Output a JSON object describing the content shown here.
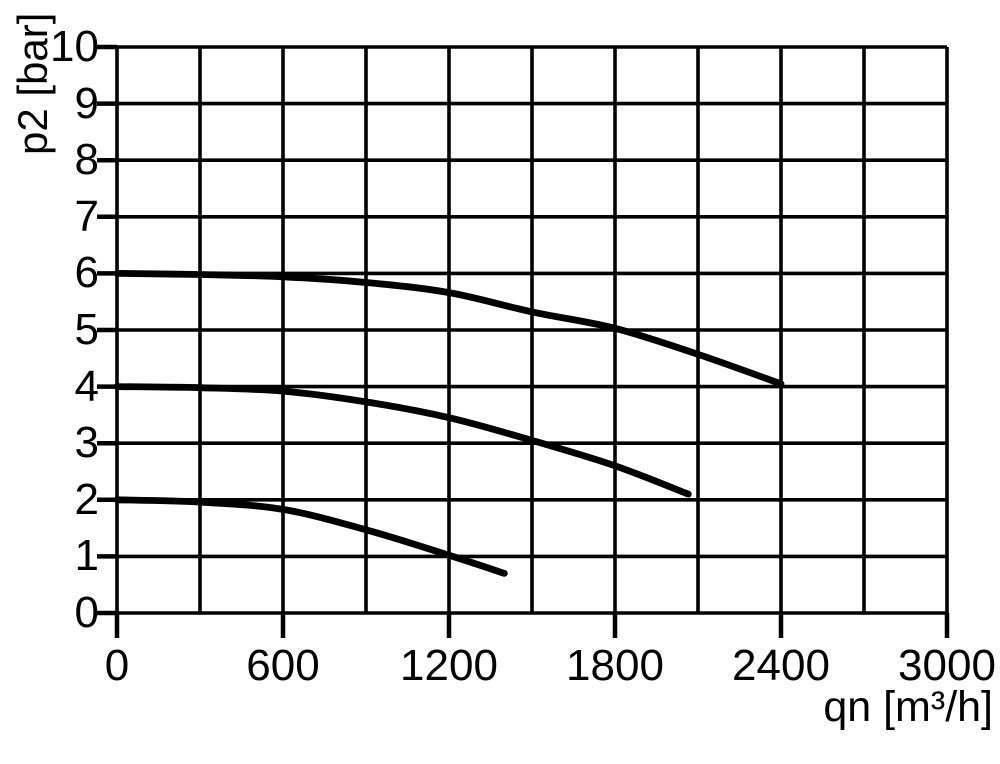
{
  "chart_data": {
    "type": "line",
    "title": "",
    "xlabel": "qn [m³/h]",
    "ylabel": "p2 [bar]",
    "xlim": [
      0,
      3000
    ],
    "ylim": [
      0,
      10
    ],
    "x_grid_step": 300,
    "y_grid_step": 1,
    "x_tick_values": [
      0,
      600,
      1200,
      1800,
      2400,
      3000
    ],
    "x_tick_labels": [
      "0",
      "600",
      "1200",
      "1800",
      "2400",
      "3000"
    ],
    "y_tick_values": [
      0,
      1,
      2,
      3,
      4,
      5,
      6,
      7,
      8,
      9,
      10
    ],
    "y_tick_labels": [
      "0",
      "1",
      "2",
      "3",
      "4",
      "5",
      "6",
      "7",
      "8",
      "9",
      "10"
    ],
    "grid": true,
    "legend": "none",
    "background": "#ffffff",
    "grid_color": "#000000",
    "line_color": "#000000",
    "series": [
      {
        "name": "curve-inlet-6bar",
        "points": [
          [
            0,
            6.0
          ],
          [
            300,
            5.98
          ],
          [
            600,
            5.94
          ],
          [
            900,
            5.84
          ],
          [
            1200,
            5.66
          ],
          [
            1500,
            5.32
          ],
          [
            1800,
            5.03
          ],
          [
            2100,
            4.57
          ],
          [
            2400,
            4.05
          ]
        ]
      },
      {
        "name": "curve-inlet-4bar",
        "points": [
          [
            0,
            4.0
          ],
          [
            300,
            3.98
          ],
          [
            600,
            3.92
          ],
          [
            900,
            3.73
          ],
          [
            1200,
            3.45
          ],
          [
            1500,
            3.05
          ],
          [
            1800,
            2.6
          ],
          [
            2065,
            2.1
          ]
        ]
      },
      {
        "name": "curve-inlet-2bar",
        "points": [
          [
            0,
            2.0
          ],
          [
            300,
            1.96
          ],
          [
            600,
            1.83
          ],
          [
            900,
            1.47
          ],
          [
            1200,
            1.02
          ],
          [
            1400,
            0.7
          ]
        ]
      }
    ]
  }
}
